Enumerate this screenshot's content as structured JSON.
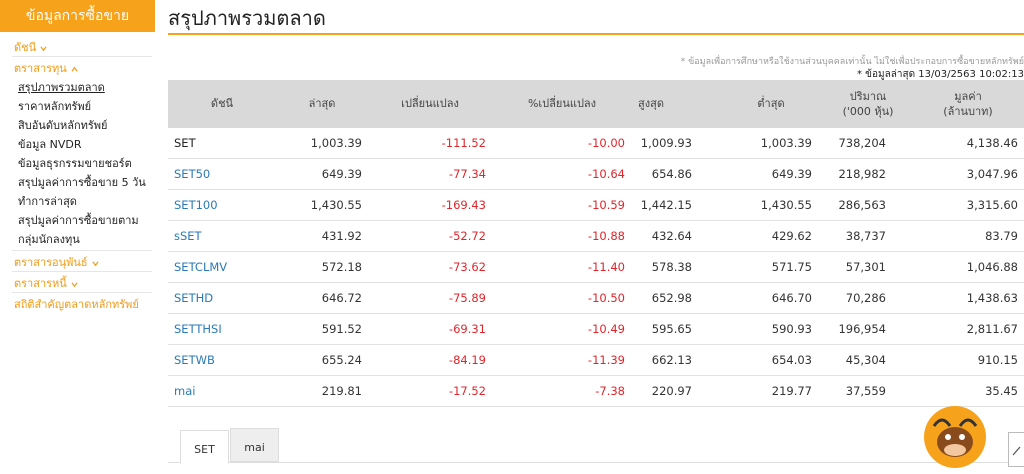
{
  "sidebar": {
    "title": "ข้อมูลการซื้อขาย",
    "menu": [
      {
        "label": "ดัชนี"
      },
      {
        "label": "ตราสารทุน",
        "items": [
          "สรุปภาพรวมตลาด",
          "ราคาหลักทรัพย์",
          "สิบอันดับหลักทรัพย์",
          "ข้อมูล NVDR",
          "ข้อมูลธุรกรรมขายชอร์ต",
          "สรุปมูลค่าการซื้อขาย 5 วัน ทำการล่าสุด",
          "สรุปมูลค่าการซื้อขายตามกลุ่มนักลงทุน"
        ]
      },
      {
        "label": "ตราสารอนุพันธ์"
      },
      {
        "label": "ตราสารหนี้"
      },
      {
        "label": "สถิติสำคัญตลาดหลักทรัพย์"
      }
    ]
  },
  "header": {
    "title": "สรุปภาพรวมตลาด",
    "note": "* ข้อมูลเพื่อการศึกษาหรือใช้งานส่วนบุคคลเท่านั้น ไม่ใช่เพื่อประกอบการซื้อขายหลักทรัพย์",
    "updated": "* ข้อมูลล่าสุด 13/03/2563 10:02:13"
  },
  "table": {
    "columns": [
      [
        "ดัชนี"
      ],
      [
        "ล่าสุด"
      ],
      [
        "เปลี่ยนแปลง"
      ],
      [
        "%เปลี่ยนแปลง"
      ],
      [
        "สูงสุด"
      ],
      [
        "ต่ำสุด"
      ],
      [
        "ปริมาณ",
        "('000 หุ้น)"
      ],
      [
        "มูลค่า",
        "(ล้านบาท)"
      ]
    ],
    "rows": [
      [
        "SET",
        "1,003.39",
        "-111.52",
        "-10.00",
        "1,009.93",
        "1,003.39",
        "738,204",
        "4,138.46"
      ],
      [
        "SET50",
        "649.39",
        "-77.34",
        "-10.64",
        "654.86",
        "649.39",
        "218,982",
        "3,047.96"
      ],
      [
        "SET100",
        "1,430.55",
        "-169.43",
        "-10.59",
        "1,442.15",
        "1,430.55",
        "286,563",
        "3,315.60"
      ],
      [
        "sSET",
        "431.92",
        "-52.72",
        "-10.88",
        "432.64",
        "429.62",
        "38,737",
        "83.79"
      ],
      [
        "SETCLMV",
        "572.18",
        "-73.62",
        "-11.40",
        "578.38",
        "571.75",
        "57,301",
        "1,046.88"
      ],
      [
        "SETHD",
        "646.72",
        "-75.89",
        "-10.50",
        "652.98",
        "646.70",
        "70,286",
        "1,438.63"
      ],
      [
        "SETTHSI",
        "591.52",
        "-69.31",
        "-10.49",
        "595.65",
        "590.93",
        "196,954",
        "2,811.67"
      ],
      [
        "SETWB",
        "655.24",
        "-84.19",
        "-11.39",
        "662.13",
        "654.03",
        "45,304",
        "910.15"
      ],
      [
        "mai",
        "219.81",
        "-17.52",
        "-7.38",
        "220.97",
        "219.77",
        "37,559",
        "35.45"
      ]
    ]
  },
  "tabs": [
    "SET",
    "mai"
  ]
}
